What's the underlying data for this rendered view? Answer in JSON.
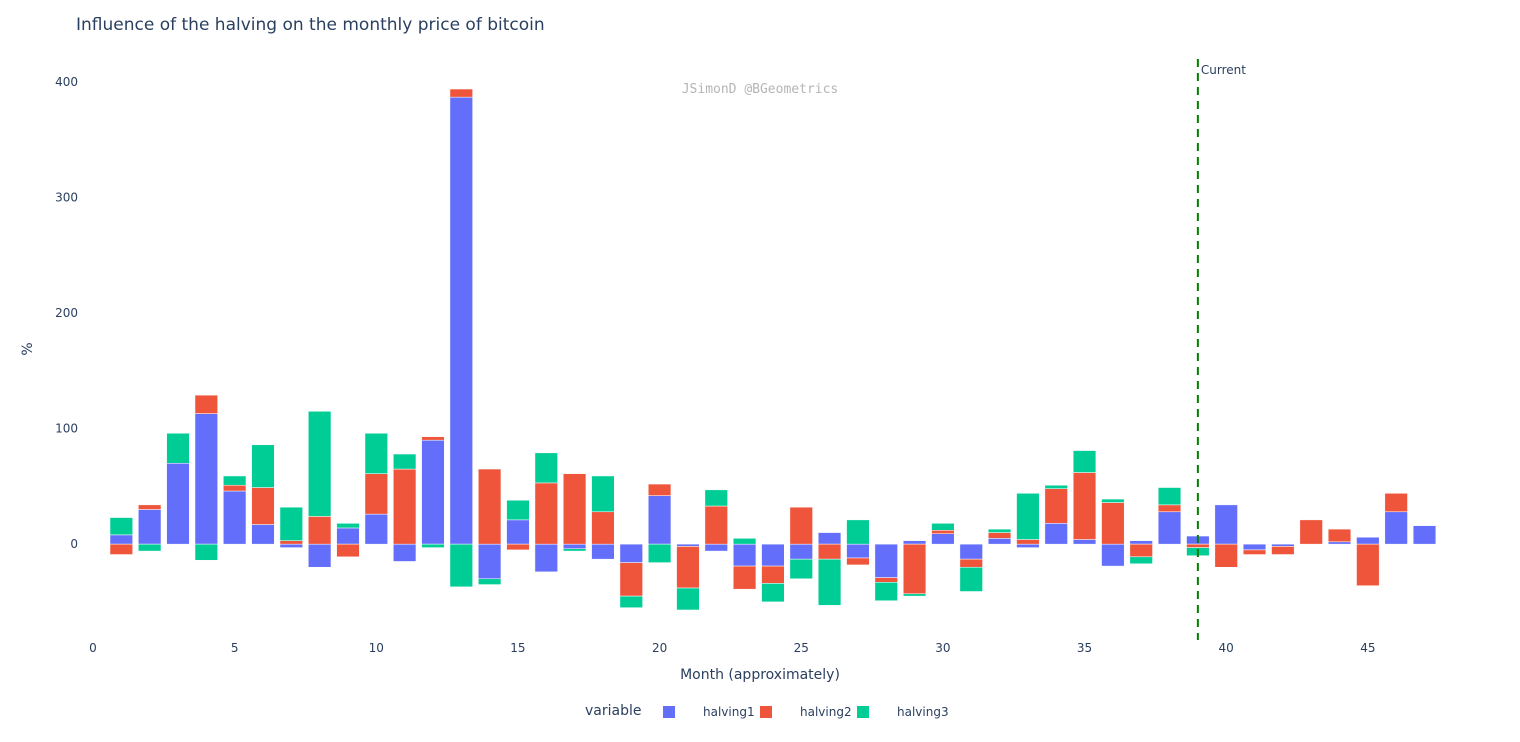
{
  "chart_data": {
    "type": "bar",
    "barmode": "relative",
    "title": "Influence of the halving on the monthly price of bitcoin",
    "xlabel": "Month (approximately)",
    "ylabel": "%",
    "xlim": [
      0,
      48.5
    ],
    "ylim": [
      -83,
      420
    ],
    "x_ticks": [
      0,
      5,
      10,
      15,
      20,
      25,
      30,
      35,
      40,
      45
    ],
    "y_ticks": [
      0,
      100,
      200,
      300,
      400
    ],
    "grid": false,
    "legend_title": "variable",
    "legend_position": "bottom-center",
    "watermark": "JSimonD @BGeometrics",
    "marker": {
      "x": 39,
      "label": "Current",
      "color": "#008000"
    },
    "x": [
      1,
      2,
      3,
      4,
      5,
      6,
      7,
      8,
      9,
      10,
      11,
      12,
      13,
      14,
      15,
      16,
      17,
      18,
      19,
      20,
      21,
      22,
      23,
      24,
      25,
      26,
      27,
      28,
      29,
      30,
      31,
      32,
      33,
      34,
      35,
      36,
      37,
      38,
      39,
      40,
      41,
      42,
      43,
      44,
      45,
      46,
      47
    ],
    "series": [
      {
        "name": "halving1",
        "color": "#636efa",
        "values": [
          8,
          30,
          70,
          113,
          46,
          17,
          -3,
          -20,
          14,
          26,
          -15,
          90,
          387,
          -30,
          21,
          -24,
          -4,
          -13,
          -16,
          42,
          -2,
          -6,
          -19,
          -19,
          -13,
          10,
          -12,
          -29,
          3,
          9,
          -13,
          5,
          -3,
          18,
          4,
          -19,
          3,
          28,
          7,
          34,
          -5,
          -2,
          0,
          2,
          6,
          28,
          16
        ]
      },
      {
        "name": "halving2",
        "color": "#ef553b",
        "values": [
          -9,
          4,
          0,
          16,
          5,
          32,
          3,
          24,
          -11,
          35,
          65,
          3,
          7,
          65,
          -5,
          53,
          61,
          28,
          -29,
          10,
          -36,
          33,
          -20,
          -15,
          32,
          -13,
          -6,
          -4,
          -43,
          3,
          -7,
          5,
          4,
          30,
          58,
          36,
          -11,
          6,
          -3,
          -20,
          -4,
          -7,
          21,
          11,
          -36,
          16,
          0
        ]
      },
      {
        "name": "halving3",
        "color": "#00cc96",
        "values": [
          15,
          -6,
          26,
          -14,
          8,
          37,
          29,
          91,
          4,
          35,
          13,
          -3,
          -37,
          -5,
          17,
          26,
          -2,
          31,
          -10,
          -16,
          -19,
          14,
          5,
          -16,
          -17,
          -40,
          21,
          -16,
          -2,
          6,
          -21,
          3,
          40,
          3,
          19,
          3,
          -6,
          15,
          -7,
          0,
          0,
          0,
          0,
          0,
          0,
          0,
          0
        ]
      }
    ]
  }
}
